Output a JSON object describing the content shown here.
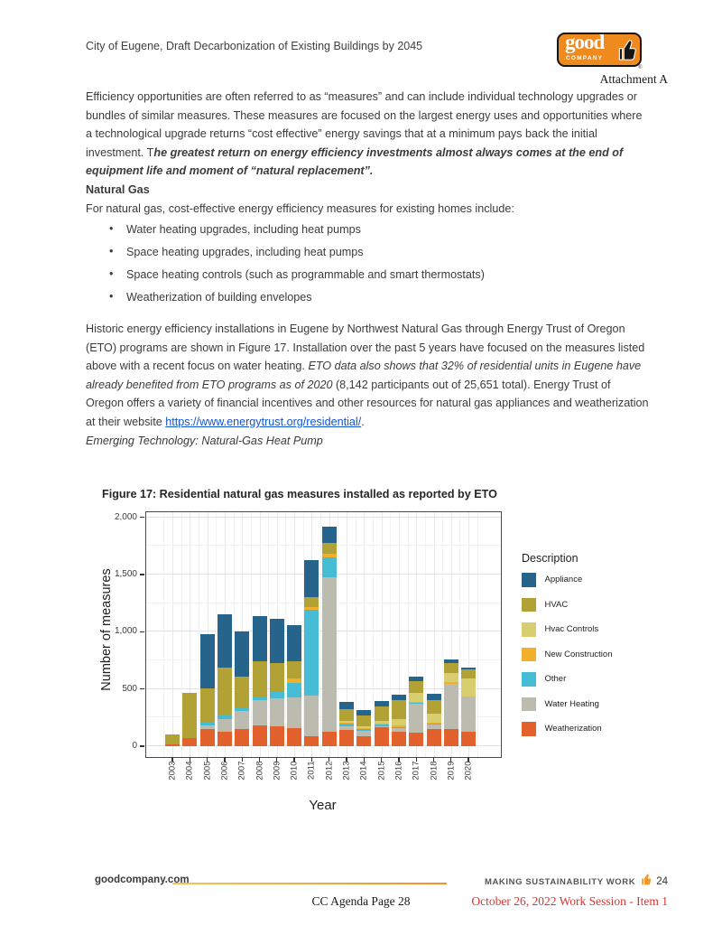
{
  "header": {
    "doc_title": "City of Eugene, Draft Decarbonization of Existing Buildings by 2045",
    "attachment": "Attachment A",
    "logo": {
      "word1": "good",
      "word2": "COMPANY",
      "reg": "®",
      "orange": "#EE8A1E"
    }
  },
  "intro": {
    "plain": "Efficiency opportunities are often referred to as “measures” and can include individual technology upgrades or bundles of similar measures. These measures are focused on the largest energy uses and opportunities where a technological upgrade returns “cost effective” energy savings that at a minimum pays back the initial investment. T",
    "bold_italic": "he greatest return on energy efficiency investments almost always comes at the end of equipment life and moment of “natural replacement”."
  },
  "natural_gas": {
    "heading": "Natural Gas",
    "intro": "For natural gas, cost-effective energy efficiency measures for existing homes include:",
    "bullet_char": "•",
    "bullets": [
      "Water heating upgrades, including heat pumps",
      "Space heating upgrades, including heat pumps",
      "Space heating controls (such as programmable and smart thermostats)",
      "Weatherization of building envelopes"
    ]
  },
  "historic": {
    "p1": "Historic energy efficiency installations in Eugene by Northwest Natural Gas through Energy Trust of Oregon (ETO) programs are shown in Figure 17. Installation over the past 5 years have focused on the measures listed above with a recent focus on water heating. ",
    "italic": "ETO data also shows that 32% of residential units in Eugene have already benefited from ETO programs as of 2020",
    "p2": " (8,142 participants out of 25,651 total). Energy Trust of Oregon offers a variety of financial incentives and other resources for natural gas appliances and weatherization at their website ",
    "link": "https://www.energytrust.org/residential/",
    "p3": ".",
    "link_color": "#1155CC",
    "emerging": "Emerging Technology: Natural-Gas Heat Pump"
  },
  "figure": {
    "title": "Figure 17: Residential natural gas measures installed as reported by ETO"
  },
  "chart_data": {
    "type": "bar",
    "stacked": true,
    "title": "Figure 17: Residential natural gas measures installed as reported by ETO",
    "xlabel": "Year",
    "ylabel": "Number of measures",
    "ylim": [
      0,
      2000
    ],
    "ytick_values": [
      0,
      500,
      1000,
      1500,
      2000
    ],
    "ytick_labels": [
      "0",
      "500",
      "1,000",
      "1,500",
      "2,000"
    ],
    "grid": true,
    "legend_title": "Description",
    "legend_position": "right",
    "legend_order": [
      "Appliance",
      "HVAC",
      "Hvac Controls",
      "New Construction",
      "Other",
      "Water Heating",
      "Weatherization"
    ],
    "stack_order": "bottom_to_top",
    "categories": [
      "2003",
      "2004",
      "2005",
      "2006",
      "2007",
      "2008",
      "2009",
      "2010",
      "2011",
      "2012",
      "2013",
      "2014",
      "2015",
      "2016",
      "2017",
      "2018",
      "2019",
      "2020"
    ],
    "series": [
      {
        "name": "Weatherization",
        "color": "#E2612C",
        "values": [
          15,
          75,
          150,
          125,
          150,
          185,
          170,
          160,
          85,
          130,
          145,
          90,
          165,
          130,
          118,
          150,
          150,
          125
        ]
      },
      {
        "name": "Water Heating",
        "color": "#BCBBB0",
        "values": [
          0,
          0,
          30,
          115,
          155,
          215,
          250,
          270,
          355,
          1345,
          30,
          45,
          8,
          28,
          252,
          40,
          395,
          310
        ]
      },
      {
        "name": "Other",
        "color": "#47BCD5",
        "values": [
          0,
          0,
          25,
          30,
          25,
          30,
          55,
          125,
          750,
          175,
          20,
          12,
          14,
          8,
          8,
          6,
          0,
          0
        ]
      },
      {
        "name": "New Construction",
        "color": "#F2AF29",
        "values": [
          0,
          0,
          0,
          0,
          0,
          0,
          0,
          35,
          25,
          30,
          10,
          12,
          12,
          14,
          12,
          10,
          15,
          0
        ]
      },
      {
        "name": "Hvac Controls",
        "color": "#D8CE6F",
        "values": [
          0,
          0,
          0,
          0,
          0,
          0,
          0,
          0,
          0,
          0,
          15,
          16,
          25,
          60,
          75,
          80,
          80,
          160
        ]
      },
      {
        "name": "HVAC",
        "color": "#B2A235",
        "values": [
          90,
          395,
          300,
          415,
          280,
          315,
          250,
          150,
          85,
          95,
          105,
          95,
          125,
          160,
          102,
          120,
          85,
          75
        ]
      },
      {
        "name": "Appliance",
        "color": "#26648C",
        "values": [
          0,
          0,
          475,
          465,
          390,
          395,
          390,
          315,
          330,
          145,
          60,
          45,
          46,
          50,
          43,
          54,
          30,
          18
        ]
      }
    ]
  },
  "footer": {
    "site": "goodcompany.com",
    "tagline": "MAKING SUSTAINABILITY WORK",
    "page_number": "24",
    "agenda": "CC Agenda Page 28",
    "session": "October 26, 2022 Work Session - Item 1",
    "session_color": "#D63631",
    "rule_color": "#EE9427"
  }
}
